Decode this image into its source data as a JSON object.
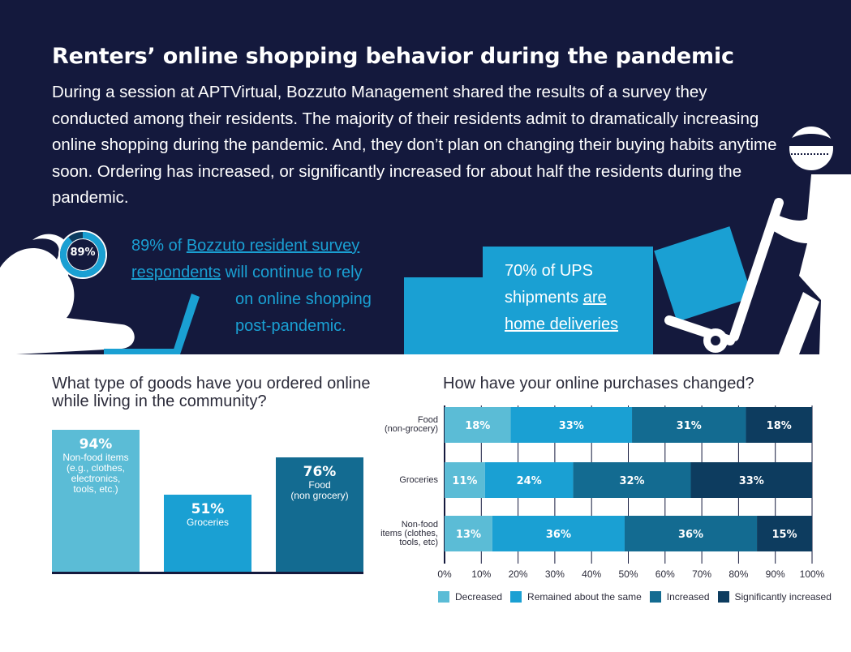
{
  "header": {
    "title": "Renters’ online shopping behavior during the pandemic",
    "intro": "During a session at APTVirtual, Bozzuto Management shared the results of a survey they conducted among their residents. The majority of their residents admit to dramatically increasing online shopping during the pandemic. And, they don’t plan on changing their buying habits anytime soon. Ordering has increased, or significantly increased for about half the residents during the pandemic."
  },
  "stat_89": {
    "ring_label": "89%",
    "ring_value": 0.89,
    "line1_a": "89% of ",
    "line1_b": "Bozzuto resident survey",
    "line2_a": "respondents",
    "line2_b": " will continue to rely",
    "line3": "on online shopping",
    "line4": "post-pandemic."
  },
  "stat_70": {
    "line1": "70% of UPS",
    "line2_a": "shipments ",
    "line2_b": "are",
    "line3": "home deliveries"
  },
  "colors": {
    "navy": "#14193d",
    "decreased": "#5bbcd6",
    "remained": "#1aa0d3",
    "increased": "#136b91",
    "significantly": "#0d3c5f"
  },
  "chart_data": [
    {
      "type": "bar",
      "title": "What type of goods have you ordered online while living in the community?",
      "categories": [
        "Non-food items (e.g., clothes, electronics, tools, etc.)",
        "Groceries",
        "Food (non grocery)"
      ],
      "values": [
        94,
        51,
        76
      ],
      "value_labels": [
        "94%",
        "51%",
        "76%"
      ],
      "category_lines": [
        [
          "Non-food items",
          "(e.g., clothes,",
          "electronics,",
          "tools, etc.)"
        ],
        [
          "Groceries"
        ],
        [
          "Food",
          "(non grocery)"
        ]
      ],
      "ylim": [
        0,
        100
      ]
    },
    {
      "type": "bar",
      "orientation": "horizontal-stacked",
      "title": "How have your online purchases changed?",
      "categories": [
        "Food (non-grocery)",
        "Groceries",
        "Non-food items (clothes, tools, etc)"
      ],
      "category_lines": [
        [
          "Food",
          "(non-grocery)"
        ],
        [
          "Groceries"
        ],
        [
          "Non-food",
          "items (clothes,",
          "tools, etc)"
        ]
      ],
      "series": [
        {
          "name": "Decreased",
          "values": [
            18,
            11,
            13
          ]
        },
        {
          "name": "Remained about the same",
          "values": [
            33,
            24,
            36
          ]
        },
        {
          "name": "Increased",
          "values": [
            31,
            32,
            36
          ]
        },
        {
          "name": "Significantly increased",
          "values": [
            18,
            33,
            15
          ]
        }
      ],
      "xlim": [
        0,
        100
      ],
      "xticks": [
        "0%",
        "10%",
        "20%",
        "30%",
        "40%",
        "50%",
        "60%",
        "70%",
        "80%",
        "90%",
        "100%"
      ],
      "legend": "bottom",
      "grid": true
    }
  ]
}
